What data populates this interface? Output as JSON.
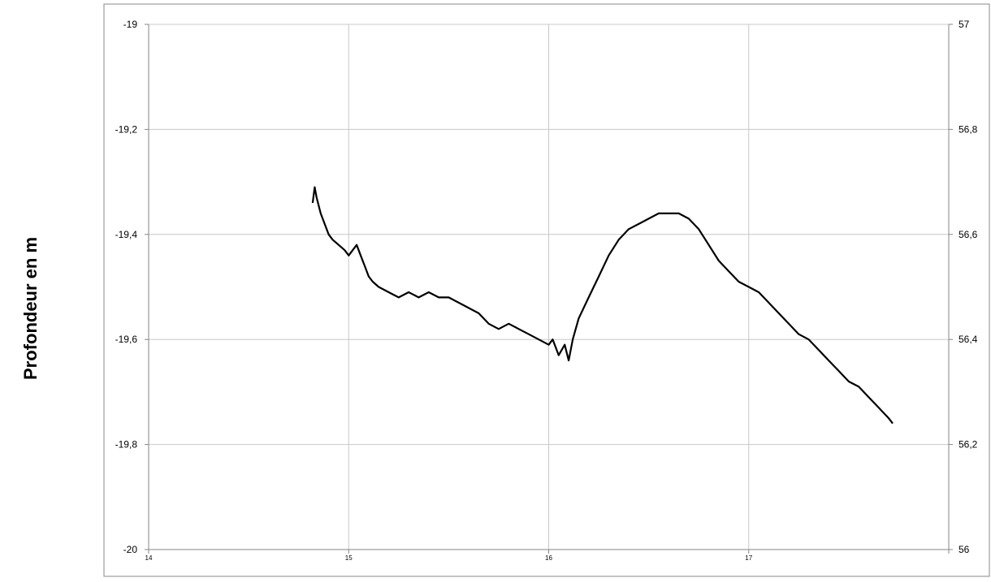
{
  "chart_data": {
    "type": "line",
    "title": "",
    "xlabel": "",
    "ylabel": "Profondeur en m",
    "xlim": [
      14,
      18
    ],
    "ylim": [
      -20,
      -19
    ],
    "y2lim": [
      56,
      57
    ],
    "grid": true,
    "legend": "none",
    "x_ticks": [
      14,
      15,
      16,
      17,
      18
    ],
    "x_tick_labels": [
      "14",
      "15",
      "16",
      "17",
      ""
    ],
    "y_ticks": [
      -19,
      -19.2,
      -19.4,
      -19.6,
      -19.8,
      -20
    ],
    "y_tick_labels": [
      "-19",
      "-19,2",
      "-19,4",
      "-19,6",
      "-19,8",
      "-20"
    ],
    "y2_ticks": [
      57,
      56.8,
      56.6,
      56.4,
      56.2,
      56
    ],
    "y2_tick_labels": [
      "57",
      "56,8",
      "56,6",
      "56,4",
      "56,2",
      "56"
    ],
    "colors": {
      "line": "#000000",
      "grid": "#c8c8c8",
      "axis": "#868686",
      "frame": "#888888"
    },
    "series": [
      {
        "x": [
          14.82,
          14.83,
          14.84,
          14.86,
          14.88,
          14.9,
          14.92,
          14.95,
          14.98,
          15.0,
          15.02,
          15.04,
          15.06,
          15.08,
          15.1,
          15.12,
          15.15,
          15.2,
          15.25,
          15.3,
          15.35,
          15.4,
          15.45,
          15.5,
          15.55,
          15.6,
          15.65,
          15.7,
          15.75,
          15.8,
          15.85,
          15.9,
          15.95,
          16.0,
          16.02,
          16.05,
          16.08,
          16.1,
          16.12,
          16.15,
          16.2,
          16.25,
          16.3,
          16.35,
          16.4,
          16.45,
          16.5,
          16.55,
          16.6,
          16.65,
          16.7,
          16.75,
          16.8,
          16.85,
          16.9,
          16.95,
          17.0,
          17.05,
          17.1,
          17.15,
          17.2,
          17.25,
          17.3,
          17.35,
          17.4,
          17.45,
          17.5,
          17.55,
          17.6,
          17.65,
          17.7,
          17.72
        ],
        "values": [
          -19.34,
          -19.31,
          -19.33,
          -19.36,
          -19.38,
          -19.4,
          -19.41,
          -19.42,
          -19.43,
          -19.44,
          -19.43,
          -19.42,
          -19.44,
          -19.46,
          -19.48,
          -19.49,
          -19.5,
          -19.51,
          -19.52,
          -19.51,
          -19.52,
          -19.51,
          -19.52,
          -19.52,
          -19.53,
          -19.54,
          -19.55,
          -19.57,
          -19.58,
          -19.57,
          -19.58,
          -19.59,
          -19.6,
          -19.61,
          -19.6,
          -19.63,
          -19.61,
          -19.64,
          -19.6,
          -19.56,
          -19.52,
          -19.48,
          -19.44,
          -19.41,
          -19.39,
          -19.38,
          -19.37,
          -19.36,
          -19.36,
          -19.36,
          -19.37,
          -19.39,
          -19.42,
          -19.45,
          -19.47,
          -19.49,
          -19.5,
          -19.51,
          -19.53,
          -19.55,
          -19.57,
          -19.59,
          -19.6,
          -19.62,
          -19.64,
          -19.66,
          -19.68,
          -19.69,
          -19.71,
          -19.73,
          -19.75,
          -19.76
        ]
      }
    ]
  }
}
